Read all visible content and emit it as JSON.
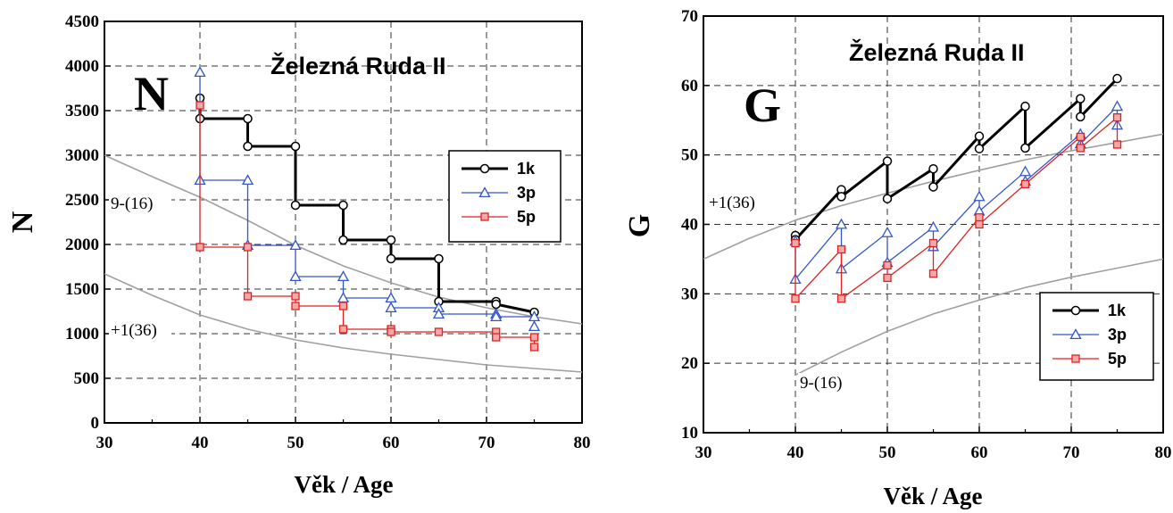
{
  "chart_data": [
    {
      "type": "line",
      "title": "Železná Ruda II",
      "panel_letter": "N",
      "xlabel": "Věk / Age",
      "ylabel": "N",
      "xlim": [
        30,
        80
      ],
      "ylim": [
        0,
        4500
      ],
      "x_ticks": [
        "30",
        "40",
        "50",
        "60",
        "70",
        "80"
      ],
      "y_ticks": [
        "0",
        "500",
        "1000",
        "1500",
        "2000",
        "2500",
        "3000",
        "3500",
        "4000",
        "4500"
      ],
      "grid": true,
      "legend_position": "right",
      "colors": {
        "1k": "#000000",
        "3p": "#3355cc",
        "5p": "#dd2222",
        "reference": "#a0a0a0"
      },
      "series": [
        {
          "name": "1k",
          "marker": "circle",
          "points": [
            [
              40,
              3640
            ],
            [
              40,
              3410
            ],
            [
              45,
              3410
            ],
            [
              45,
              3100
            ],
            [
              50,
              3100
            ],
            [
              50,
              2440
            ],
            [
              55,
              2440
            ],
            [
              55,
              2050
            ],
            [
              60,
              2050
            ],
            [
              60,
              1840
            ],
            [
              65,
              1840
            ],
            [
              65,
              1360
            ],
            [
              71,
              1360
            ],
            [
              71,
              1330
            ],
            [
              75,
              1240
            ]
          ]
        },
        {
          "name": "3p",
          "marker": "triangle",
          "points": [
            [
              40,
              3930
            ],
            [
              40,
              2720
            ],
            [
              45,
              2720
            ],
            [
              45,
              1990
            ],
            [
              50,
              1990
            ],
            [
              50,
              1640
            ],
            [
              55,
              1640
            ],
            [
              55,
              1400
            ],
            [
              60,
              1400
            ],
            [
              60,
              1290
            ],
            [
              65,
              1290
            ],
            [
              65,
              1220
            ],
            [
              71,
              1220
            ],
            [
              71,
              1190
            ],
            [
              75,
              1190
            ],
            [
              75,
              1080
            ]
          ]
        },
        {
          "name": "5p",
          "marker": "square",
          "points": [
            [
              40,
              3560
            ],
            [
              40,
              1970
            ],
            [
              45,
              1970
            ],
            [
              45,
              1420
            ],
            [
              50,
              1420
            ],
            [
              50,
              1310
            ],
            [
              55,
              1310
            ],
            [
              55,
              1050
            ],
            [
              60,
              1050
            ],
            [
              60,
              1020
            ],
            [
              65,
              1020
            ],
            [
              71,
              1020
            ],
            [
              71,
              960
            ],
            [
              75,
              960
            ],
            [
              75,
              850
            ]
          ]
        }
      ],
      "reference_curves": [
        {
          "label": "9-(16)",
          "points": [
            [
              30,
              3000
            ],
            [
              35,
              2760
            ],
            [
              40,
              2530
            ],
            [
              45,
              2270
            ],
            [
              50,
              1990
            ],
            [
              55,
              1760
            ],
            [
              60,
              1570
            ],
            [
              65,
              1410
            ],
            [
              70,
              1290
            ],
            [
              75,
              1190
            ],
            [
              80,
              1110
            ]
          ]
        },
        {
          "label": "+1(36)",
          "points": [
            [
              30,
              1670
            ],
            [
              35,
              1430
            ],
            [
              40,
              1210
            ],
            [
              45,
              1050
            ],
            [
              50,
              930
            ],
            [
              55,
              840
            ],
            [
              60,
              770
            ],
            [
              65,
              710
            ],
            [
              70,
              650
            ],
            [
              75,
              610
            ],
            [
              80,
              570
            ]
          ]
        }
      ]
    },
    {
      "type": "line",
      "title": "Železná Ruda II",
      "panel_letter": "G",
      "xlabel": "Věk / Age",
      "ylabel": "G",
      "xlim": [
        30,
        80
      ],
      "ylim": [
        10,
        70
      ],
      "x_ticks": [
        "30",
        "40",
        "50",
        "60",
        "70",
        "80"
      ],
      "y_ticks": [
        "10",
        "20",
        "30",
        "40",
        "50",
        "60",
        "70"
      ],
      "grid": true,
      "legend_position": "bottom-right",
      "colors": {
        "1k": "#000000",
        "3p": "#3355cc",
        "5p": "#dd2222",
        "reference": "#a0a0a0"
      },
      "series": [
        {
          "name": "1k",
          "marker": "circle",
          "points": [
            [
              40,
              38.4
            ],
            [
              40,
              37.8
            ],
            [
              45,
              45
            ],
            [
              45,
              44
            ],
            [
              50,
              49.1
            ],
            [
              50,
              43.7
            ],
            [
              55,
              48
            ],
            [
              55,
              45.4
            ],
            [
              60,
              52.7
            ],
            [
              60,
              50.9
            ],
            [
              65,
              57
            ],
            [
              65,
              51
            ],
            [
              71,
              58.1
            ],
            [
              71,
              55.5
            ],
            [
              75,
              61
            ]
          ]
        },
        {
          "name": "3p",
          "marker": "triangle",
          "points": [
            [
              40,
              37.6
            ],
            [
              40,
              32.1
            ],
            [
              45,
              40
            ],
            [
              45,
              33.6
            ],
            [
              50,
              38.8
            ],
            [
              50,
              34.5
            ],
            [
              55,
              39.6
            ],
            [
              55,
              36.8
            ],
            [
              60,
              44
            ],
            [
              60,
              41.9
            ],
            [
              65,
              47.6
            ],
            [
              65,
              46.2
            ],
            [
              71,
              53
            ],
            [
              71,
              51.6
            ],
            [
              75,
              57
            ],
            [
              75,
              54.3
            ]
          ]
        },
        {
          "name": "5p",
          "marker": "square",
          "points": [
            [
              40,
              37.3
            ],
            [
              40,
              29.3
            ],
            [
              45,
              36.4
            ],
            [
              45,
              29.3
            ],
            [
              50,
              34.1
            ],
            [
              50,
              32.3
            ],
            [
              55,
              37.3
            ],
            [
              55,
              32.9
            ],
            [
              60,
              41
            ],
            [
              60,
              40
            ],
            [
              65,
              45.8
            ],
            [
              71,
              52.6
            ],
            [
              71,
              51
            ],
            [
              75,
              55.4
            ],
            [
              75,
              51.5
            ]
          ]
        }
      ],
      "reference_curves": [
        {
          "label": "+1(36)",
          "points": [
            [
              30,
              35
            ],
            [
              35,
              38
            ],
            [
              40,
              40.6
            ],
            [
              45,
              42.7
            ],
            [
              50,
              44.5
            ],
            [
              55,
              46.2
            ],
            [
              60,
              47.8
            ],
            [
              65,
              49.3
            ],
            [
              70,
              50.6
            ],
            [
              75,
              51.8
            ],
            [
              80,
              53
            ]
          ]
        },
        {
          "label": "9-(16)",
          "points": [
            [
              40,
              18.3
            ],
            [
              45,
              21.6
            ],
            [
              50,
              24.6
            ],
            [
              55,
              27.1
            ],
            [
              60,
              29.1
            ],
            [
              65,
              30.9
            ],
            [
              70,
              32.4
            ],
            [
              75,
              33.7
            ],
            [
              80,
              35
            ]
          ]
        }
      ]
    }
  ]
}
